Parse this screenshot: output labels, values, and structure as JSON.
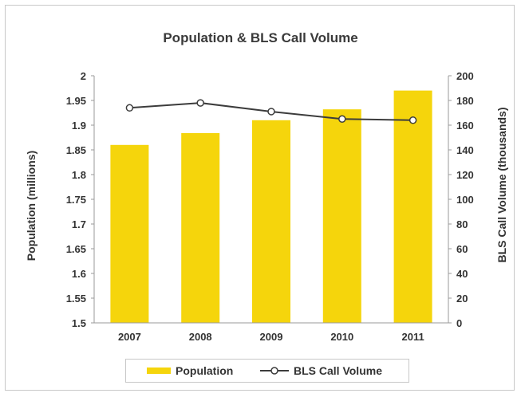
{
  "chart_data": {
    "type": "bar+line",
    "title": "Population & BLS Call Volume",
    "categories": [
      "2007",
      "2008",
      "2009",
      "2010",
      "2011"
    ],
    "series": [
      {
        "name": "Population",
        "type": "bar",
        "axis": "left",
        "values": [
          1.86,
          1.884,
          1.91,
          1.932,
          1.97
        ]
      },
      {
        "name": "BLS Call Volume",
        "type": "line",
        "axis": "right",
        "values": [
          174,
          178,
          171,
          165,
          164
        ]
      }
    ],
    "ylabel": "Population (millions)",
    "y2label": "BLS Call Volume (thousands)",
    "ylim": [
      1.5,
      2
    ],
    "y2lim": [
      0,
      200
    ],
    "yticks": [
      "1.5",
      "1.55",
      "1.6",
      "1.65",
      "1.7",
      "1.75",
      "1.8",
      "1.85",
      "1.9",
      "1.95",
      "2"
    ],
    "y2ticks": [
      "0",
      "20",
      "40",
      "60",
      "80",
      "100",
      "120",
      "140",
      "160",
      "180",
      "200"
    ],
    "legend_position": "bottom",
    "grid": false,
    "colors": {
      "bar": "#f5d50c",
      "line": "#3c3c3c",
      "marker_fill": "#ffffff"
    }
  }
}
